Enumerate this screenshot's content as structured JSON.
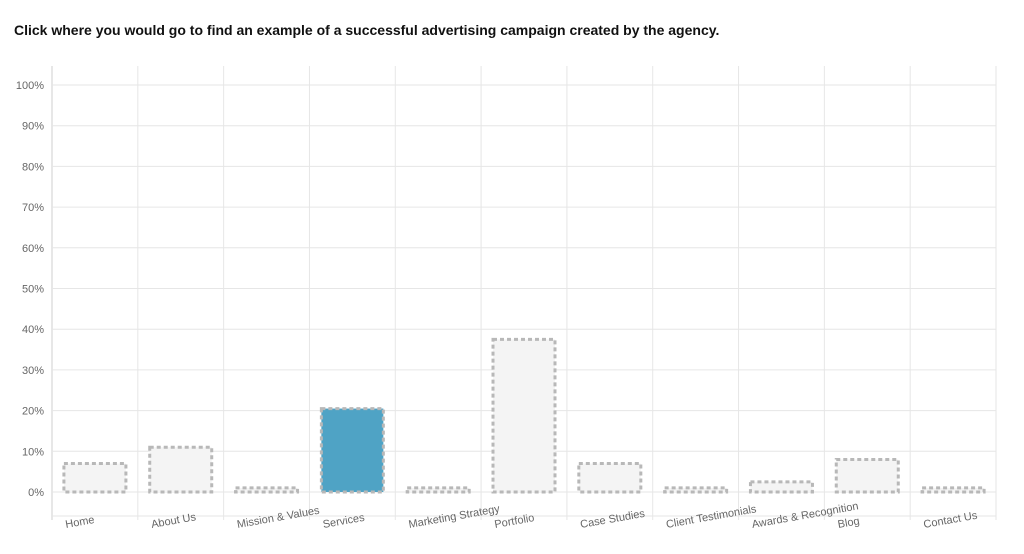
{
  "question": "Click where you would go to find an example of a successful advertising campaign created by the agency.",
  "chart_data": {
    "type": "bar",
    "categories": [
      "Home",
      "About Us",
      "Mission & Values",
      "Services",
      "Marketing Strategy",
      "Portfolio",
      "Case Studies",
      "Client Testimonials",
      "Awards & Recognition",
      "Blog",
      "Contact Us"
    ],
    "values": [
      7,
      11,
      1,
      20.5,
      1,
      37.5,
      7,
      1,
      2.5,
      8,
      1
    ],
    "highlighted_category": "Services",
    "ylim": [
      0,
      100
    ],
    "yticks": [
      "0%",
      "10%",
      "20%",
      "30%",
      "40%",
      "50%",
      "60%",
      "70%",
      "80%",
      "90%",
      "100%"
    ],
    "grid": true,
    "colors": {
      "highlight_fill": "#4fa3c5",
      "bar_fill": "#f4f4f4",
      "bar_border": "#b8b8b8",
      "grid": "#e6e6e6"
    }
  }
}
